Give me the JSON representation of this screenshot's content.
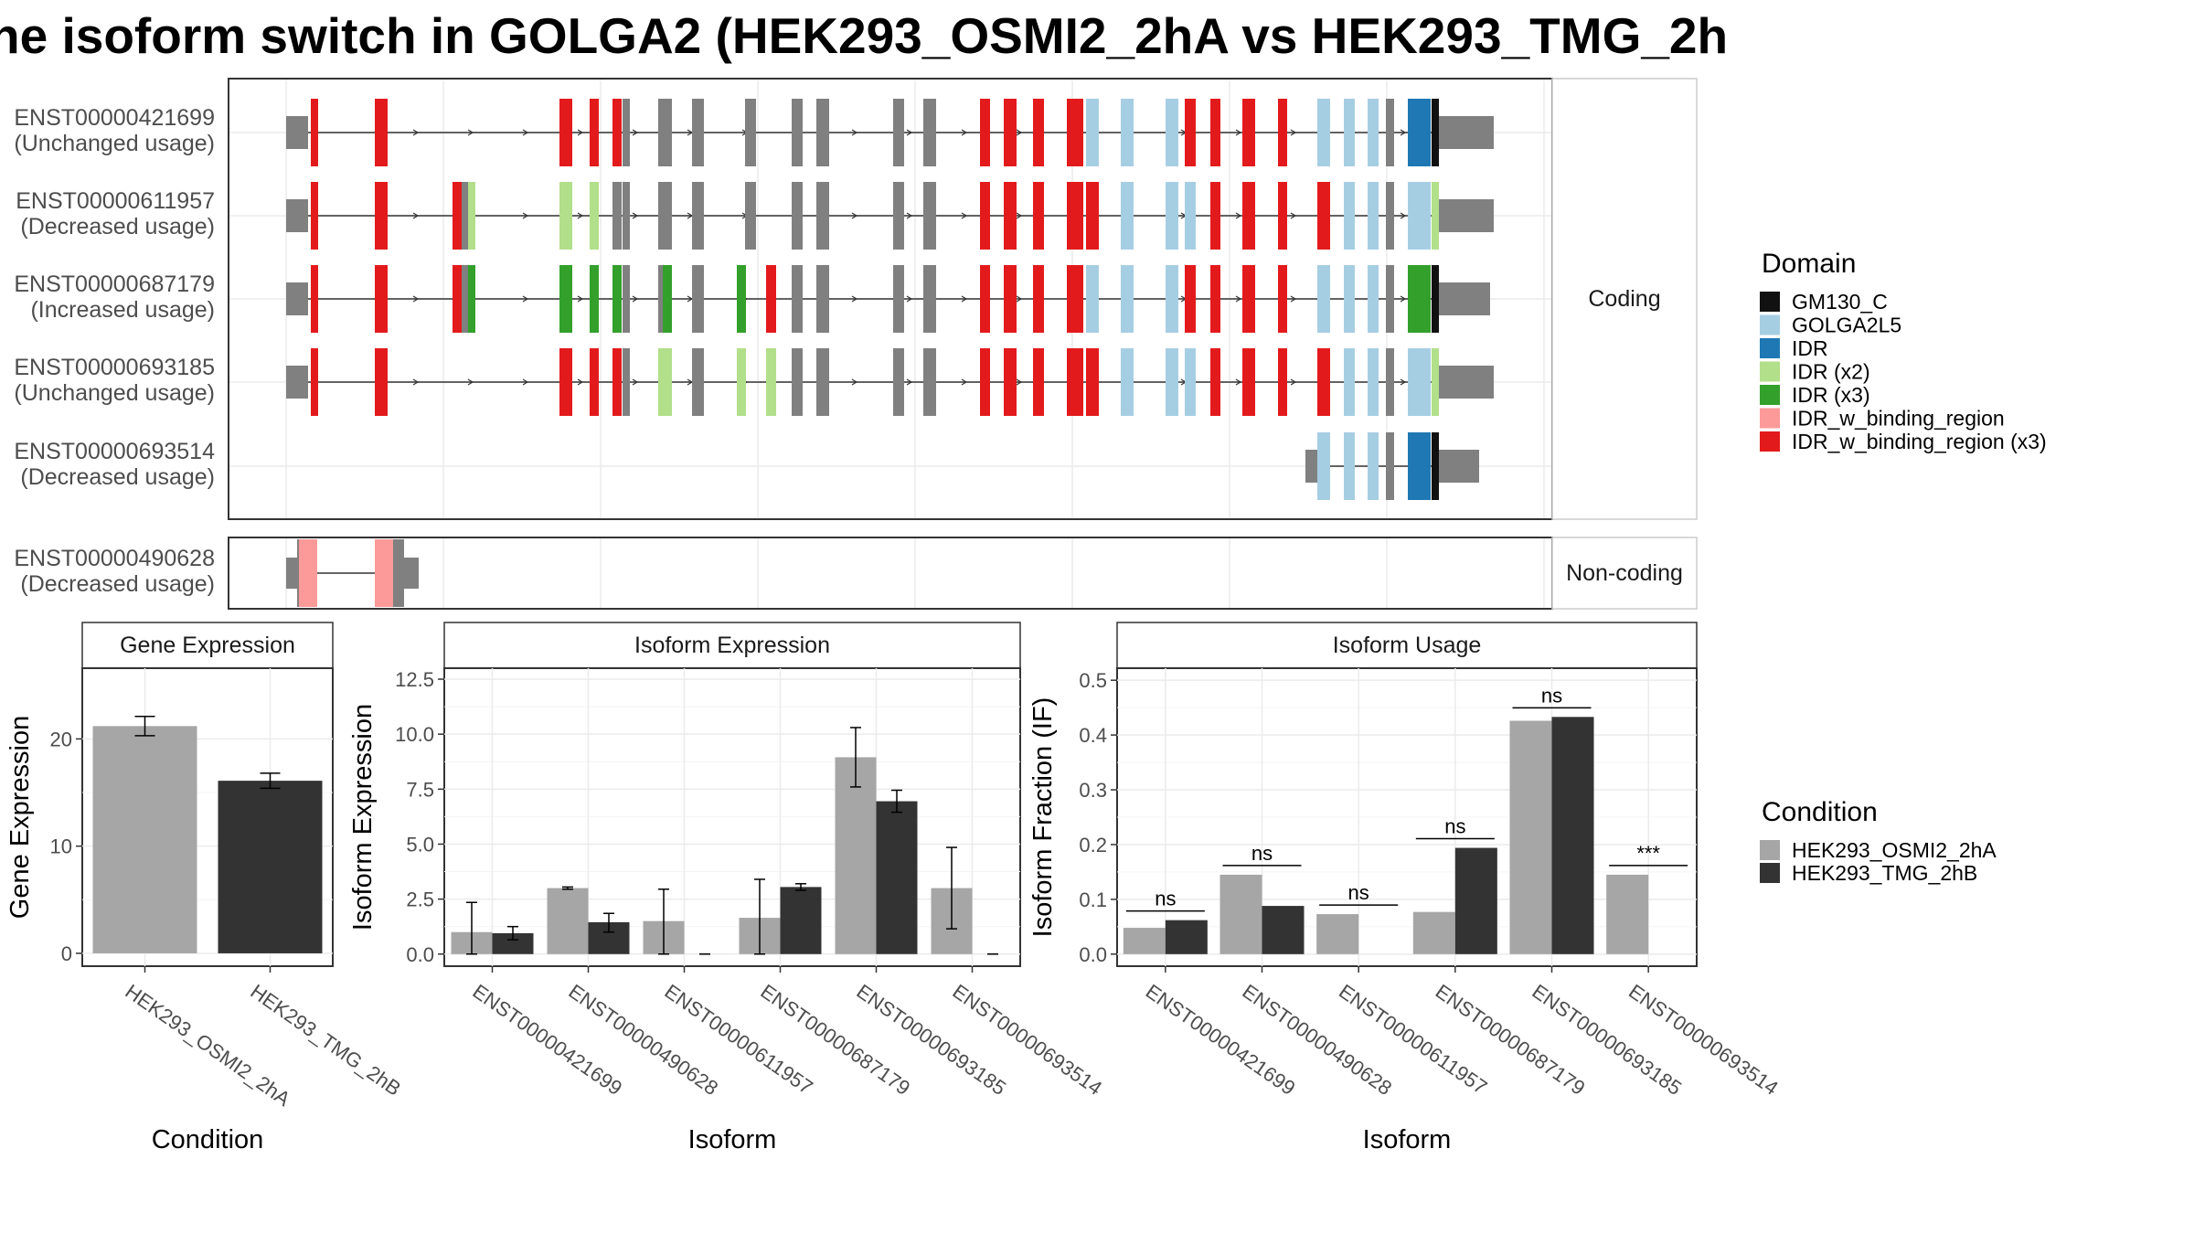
{
  "title": "he isoform switch in GOLGA2 (HEK293_OSMI2_2hA vs HEK293_TMG_2h",
  "colors": {
    "GM130_C": "#111111",
    "GOLGA2L5": "#a6cee3",
    "IDR": "#1f78b4",
    "IDR (x2)": "#b2df8a",
    "IDR (x3)": "#33a02c",
    "IDR_w_binding_region": "#fb9a99",
    "IDR_w_binding_region (x3)": "#e31a1c",
    "exon": "#808080",
    "condA": "#a6a6a6",
    "condB": "#333333"
  },
  "structure": {
    "coding_label": "Coding",
    "noncoding_label": "Non-coding",
    "transcripts": [
      {
        "id": "ENST00000421699",
        "usage": "(Unchanged usage)",
        "group": "coding",
        "domains": [
          "IDR_w_binding_region (x3)",
          "IDR_w_binding_region (x3)",
          "IDR_w_binding_region (x3)",
          "IDR_w_binding_region (x3)",
          "IDR_w_binding_region (x3)",
          "IDR_w_binding_region (x3)",
          "IDR_w_binding_region (x3)",
          "IDR_w_binding_region (x3)",
          "IDR_w_binding_region (x3)",
          "GOLGA2L5",
          "GOLGA2L5",
          "GOLGA2L5",
          "IDR_w_binding_region (x3)",
          "IDR_w_binding_region (x3)",
          "IDR_w_binding_region (x3)",
          "IDR_w_binding_region (x3)",
          "GOLGA2L5",
          "GOLGA2L5",
          "GOLGA2L5",
          "IDR",
          "GM130_C"
        ]
      },
      {
        "id": "ENST00000611957",
        "usage": "(Decreased usage)",
        "group": "coding",
        "domains": [
          "IDR_w_binding_region (x3)",
          "IDR_w_binding_region (x3)",
          "IDR_w_binding_region (x3)",
          "IDR (x2)",
          "IDR (x2)",
          "IDR (x2)",
          "IDR_w_binding_region (x3)",
          "IDR_w_binding_region (x3)",
          "IDR_w_binding_region (x3)",
          "IDR_w_binding_region (x3)",
          "IDR_w_binding_region (x3)",
          "GOLGA2L5",
          "GOLGA2L5",
          "GOLGA2L5",
          "IDR_w_binding_region (x3)",
          "IDR_w_binding_region (x3)",
          "IDR_w_binding_region (x3)",
          "IDR_w_binding_region (x3)",
          "GOLGA2L5",
          "GOLGA2L5",
          "GOLGA2L5",
          "IDR (x2)",
          "GM130_C"
        ]
      },
      {
        "id": "ENST00000687179",
        "usage": "(Increased usage)",
        "group": "coding",
        "domains": [
          "IDR_w_binding_region (x3)",
          "IDR_w_binding_region (x3)",
          "IDR_w_binding_region (x3)",
          "IDR (x3)",
          "IDR (x3)",
          "IDR (x3)",
          "IDR (x3)",
          "IDR (x3)",
          "IDR (x3)",
          "IDR_w_binding_region (x3)",
          "IDR_w_binding_region (x3)",
          "IDR_w_binding_region (x3)",
          "IDR_w_binding_region (x3)",
          "IDR_w_binding_region (x3)",
          "GOLGA2L5",
          "GOLGA2L5",
          "GOLGA2L5",
          "IDR_w_binding_region (x3)",
          "IDR_w_binding_region (x3)",
          "IDR_w_binding_region (x3)",
          "IDR_w_binding_region (x3)",
          "GOLGA2L5",
          "GOLGA2L5",
          "GOLGA2L5",
          "IDR (x3)",
          "GM130_C"
        ]
      },
      {
        "id": "ENST00000693185",
        "usage": "(Unchanged usage)",
        "group": "coding",
        "domains": [
          "IDR_w_binding_region (x3)",
          "IDR_w_binding_region (x3)",
          "IDR_w_binding_region (x3)",
          "IDR_w_binding_region (x3)",
          "IDR_w_binding_region (x3)",
          "IDR (x2)",
          "IDR (x2)",
          "IDR (x2)",
          "IDR_w_binding_region (x3)",
          "IDR_w_binding_region (x3)",
          "IDR_w_binding_region (x3)",
          "IDR_w_binding_region (x3)",
          "IDR_w_binding_region (x3)",
          "GOLGA2L5",
          "GOLGA2L5",
          "GOLGA2L5",
          "IDR_w_binding_region (x3)",
          "IDR_w_binding_region (x3)",
          "IDR_w_binding_region (x3)",
          "IDR_w_binding_region (x3)",
          "GOLGA2L5",
          "GOLGA2L5",
          "GOLGA2L5",
          "IDR (x2)",
          "GM130_C"
        ]
      },
      {
        "id": "ENST00000693514",
        "usage": "(Decreased usage)",
        "group": "coding",
        "domains": [
          "GOLGA2L5",
          "GOLGA2L5",
          "GOLGA2L5",
          "IDR",
          "GM130_C"
        ]
      },
      {
        "id": "ENST00000490628",
        "usage": "(Decreased usage)",
        "group": "noncoding",
        "domains": [
          "IDR_w_binding_region",
          "IDR_w_binding_region"
        ]
      }
    ]
  },
  "legend_domain": {
    "title": "Domain",
    "items": [
      "GM130_C",
      "GOLGA2L5",
      "IDR",
      "IDR (x2)",
      "IDR (x3)",
      "IDR_w_binding_region",
      "IDR_w_binding_region (x3)"
    ]
  },
  "legend_condition": {
    "title": "Condition",
    "items": [
      "HEK293_OSMI2_2hA",
      "HEK293_TMG_2hB"
    ]
  },
  "chart_data": [
    {
      "type": "bar",
      "title": "Gene Expression",
      "xlabel": "Condition",
      "ylabel": "Gene Expression",
      "categories": [
        "HEK293_OSMI2_2hA",
        "HEK293_TMG_2hB"
      ],
      "values": [
        21.2,
        16.1
      ],
      "errors": [
        [
          20.3,
          22.1
        ],
        [
          15.4,
          16.8
        ]
      ],
      "ylim": [
        -1.2,
        26.6
      ],
      "yticks": [
        "0",
        "10",
        "20"
      ]
    },
    {
      "type": "bar",
      "title": "Isoform Expression",
      "xlabel": "Isoform",
      "ylabel": "Isoform Expression",
      "categories": [
        "ENST00000421699",
        "ENST00000490628",
        "ENST00000611957",
        "ENST00000687179",
        "ENST00000693185",
        "ENST00000693514"
      ],
      "series": [
        {
          "name": "HEK293_OSMI2_2hA",
          "values": [
            1.0,
            3.0,
            1.5,
            1.65,
            8.95,
            3.0
          ],
          "errors": [
            [
              0.0,
              2.35
            ],
            [
              2.95,
              3.05
            ],
            [
              0.0,
              2.95
            ],
            [
              0.0,
              3.4
            ],
            [
              7.6,
              10.3
            ],
            [
              1.15,
              4.85
            ]
          ]
        },
        {
          "name": "HEK293_TMG_2hB",
          "values": [
            0.95,
            1.45,
            0.0,
            3.05,
            6.95,
            0.0
          ],
          "errors": [
            [
              0.65,
              1.25
            ],
            [
              1.0,
              1.85
            ],
            [
              0.0,
              0.0
            ],
            [
              2.9,
              3.2
            ],
            [
              6.45,
              7.45
            ],
            [
              0.0,
              0.0
            ]
          ]
        }
      ],
      "ylim": [
        -0.55,
        13.0
      ],
      "yticks": [
        "0.0",
        "2.5",
        "5.0",
        "7.5",
        "10.0",
        "12.5"
      ]
    },
    {
      "type": "bar",
      "title": "Isoform Usage",
      "xlabel": "Isoform",
      "ylabel": "Isoform Fraction (IF)",
      "categories": [
        "ENST00000421699",
        "ENST00000490628",
        "ENST00000611957",
        "ENST00000687179",
        "ENST00000693185",
        "ENST00000693514"
      ],
      "series": [
        {
          "name": "HEK293_OSMI2_2hA",
          "values": [
            0.048,
            0.145,
            0.073,
            0.077,
            0.426,
            0.145
          ]
        },
        {
          "name": "HEK293_TMG_2hB",
          "values": [
            0.062,
            0.088,
            0.0,
            0.194,
            0.433,
            0.0
          ]
        }
      ],
      "significance": [
        "ns",
        "ns",
        "ns",
        "ns",
        "ns",
        "***"
      ],
      "ylim": [
        -0.022,
        0.522
      ],
      "yticks": [
        "0.0",
        "0.1",
        "0.2",
        "0.3",
        "0.4",
        "0.5"
      ]
    }
  ]
}
